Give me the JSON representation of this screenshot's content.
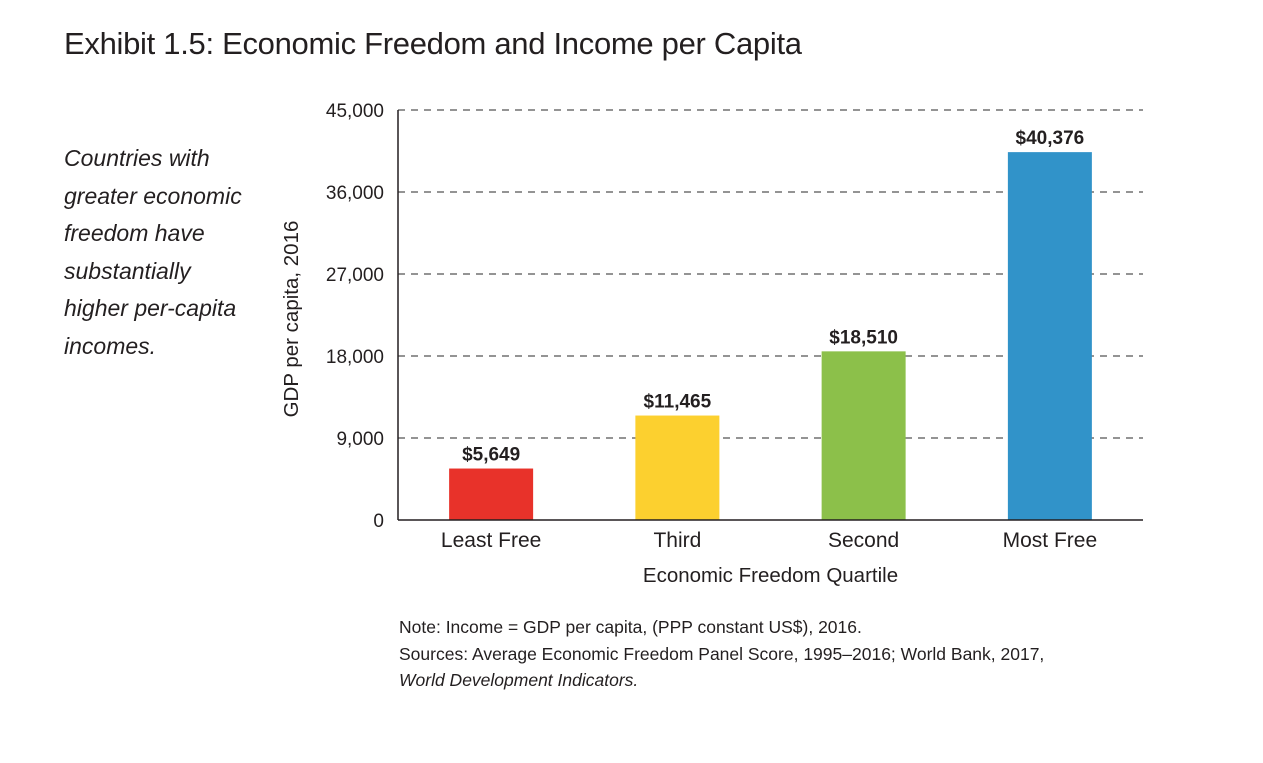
{
  "exhibit": {
    "title": "Exhibit 1.5: Economic Freedom and Income per Capita"
  },
  "sidebar": {
    "lines": [
      "Countries with",
      "greater economic",
      "freedom have",
      "substantially",
      "higher per-capita",
      "incomes."
    ]
  },
  "chart_data": {
    "type": "bar",
    "title": "Exhibit 1.5: Economic Freedom and Income per Capita",
    "xlabel": "Economic Freedom Quartile",
    "ylabel": "GDP per capita, 2016",
    "categories": [
      "Least Free",
      "Third",
      "Second",
      "Most Free"
    ],
    "values": [
      5649,
      11465,
      18510,
      40376
    ],
    "data_labels": [
      "$5,649",
      "$11,465",
      "$18,510",
      "$40,376"
    ],
    "colors": [
      "#e8322a",
      "#fcd02f",
      "#8cc04a",
      "#3193c9"
    ],
    "ylim": [
      0,
      45000
    ],
    "yticks": [
      0,
      9000,
      18000,
      27000,
      36000,
      45000
    ],
    "ytick_labels": [
      "0",
      "9,000",
      "18,000",
      "27,000",
      "36,000",
      "45,000"
    ],
    "grid": true,
    "grid_style": "dashed"
  },
  "note": {
    "line1": "Note: Income = GDP per capita, (PPP constant US$), 2016.",
    "line2": "Sources: Average Economic Freedom Panel Score, 1995–2016; World Bank, 2017,",
    "line3": "World Development Indicators."
  },
  "colors": {
    "text": "#231f20",
    "grid": "#555555",
    "axis": "#231f20"
  }
}
